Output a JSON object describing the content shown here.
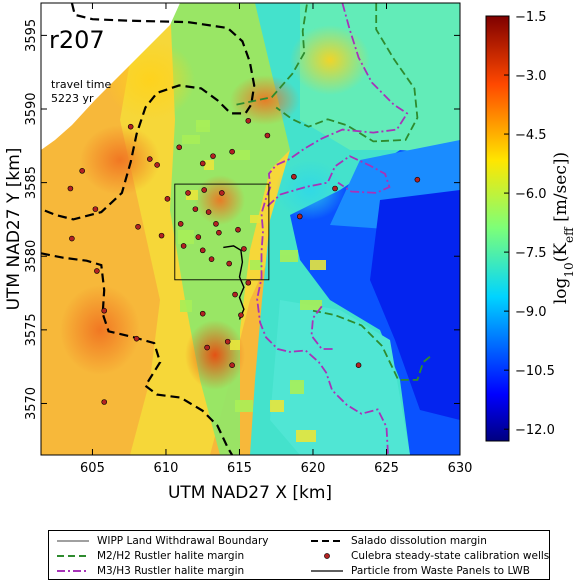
{
  "chart_data": {
    "type": "heatmap",
    "title": "",
    "xlabel": "UTM NAD27 X [km]",
    "ylabel": "UTM NAD27 Y [km]",
    "xlim": [
      601.5,
      630
    ],
    "ylim": [
      3566.5,
      3597.2
    ],
    "x_ticks": [
      "605",
      "610",
      "615",
      "620",
      "625",
      "630"
    ],
    "y_ticks": [
      "3570",
      "3575",
      "3580",
      "3585",
      "3590",
      "3595"
    ],
    "x_tick_values": [
      605,
      610,
      615,
      620,
      625,
      630
    ],
    "y_tick_values": [
      3570,
      3575,
      3580,
      3585,
      3590,
      3595
    ],
    "colorbar": {
      "label": "log10(Keff [m/sec])",
      "label_main": "log",
      "label_sub": "10",
      "label_rest": "(K",
      "label_k_sub": "eff",
      "label_units": " [m/sec])",
      "ticks": [
        "−1.5",
        "−3.0",
        "−4.5",
        "−6.0",
        "−7.5",
        "−9.0",
        "−10.5",
        "−12.0"
      ],
      "tick_values": [
        -1.5,
        -3.0,
        -4.5,
        -6.0,
        -7.5,
        -9.0,
        -10.5,
        -12.0
      ],
      "range": [
        -12.3,
        -1.5
      ]
    },
    "annotations": {
      "realization": "r207",
      "travel_label": "travel time",
      "travel_value": "5223 yr"
    },
    "land_withdrawal_boundary": {
      "x": [
        610.6,
        617.0
      ],
      "y": [
        3578.4,
        3584.9
      ]
    },
    "wells": [
      [
        607.6,
        3588.8
      ],
      [
        610.9,
        3587.4
      ],
      [
        609.4,
        3586.2
      ],
      [
        612.5,
        3586.3
      ],
      [
        613.2,
        3586.8
      ],
      [
        614.5,
        3587.1
      ],
      [
        615.6,
        3589.2
      ],
      [
        616.9,
        3588.2
      ],
      [
        608.9,
        3586.6
      ],
      [
        610.1,
        3583.9
      ],
      [
        611.5,
        3584.3
      ],
      [
        612.6,
        3584.5
      ],
      [
        613.8,
        3584.3
      ],
      [
        612.0,
        3583.2
      ],
      [
        612.9,
        3583.0
      ],
      [
        613.4,
        3582.2
      ],
      [
        611.0,
        3582.2
      ],
      [
        612.2,
        3581.3
      ],
      [
        613.6,
        3581.6
      ],
      [
        614.9,
        3581.8
      ],
      [
        611.2,
        3580.7
      ],
      [
        612.5,
        3580.4
      ],
      [
        613.1,
        3579.8
      ],
      [
        614.3,
        3579.5
      ],
      [
        615.3,
        3580.5
      ],
      [
        609.7,
        3581.4
      ],
      [
        608.1,
        3582.0
      ],
      [
        605.2,
        3583.2
      ],
      [
        604.3,
        3585.8
      ],
      [
        603.5,
        3584.6
      ],
      [
        603.6,
        3581.2
      ],
      [
        605.3,
        3579.0
      ],
      [
        605.8,
        3576.3
      ],
      [
        608.0,
        3574.4
      ],
      [
        612.5,
        3576.1
      ],
      [
        614.2,
        3574.2
      ],
      [
        614.7,
        3577.4
      ],
      [
        614.5,
        3572.6
      ],
      [
        615.1,
        3576.0
      ],
      [
        612.8,
        3573.8
      ],
      [
        615.6,
        3578.2
      ],
      [
        618.7,
        3585.4
      ],
      [
        619.1,
        3582.7
      ],
      [
        621.5,
        3584.6
      ],
      [
        623.1,
        3572.6
      ],
      [
        627.1,
        3585.2
      ],
      [
        605.8,
        3570.1
      ]
    ],
    "particle_path": [
      [
        613.9,
        3580.6
      ],
      [
        614.6,
        3580.7
      ],
      [
        615.1,
        3580.4
      ],
      [
        615.2,
        3579.6
      ],
      [
        615.0,
        3578.6
      ],
      [
        615.3,
        3577.9
      ],
      [
        615.0,
        3577.2
      ],
      [
        615.3,
        3576.4
      ],
      [
        615.0,
        3575.7
      ]
    ],
    "salado_margin": [
      [
        [
          603.6,
          3597.2
        ],
        [
          603.8,
          3596.4
        ],
        [
          605.0,
          3596.1
        ],
        [
          607.5,
          3596.0
        ],
        [
          611.5,
          3595.9
        ],
        [
          614.2,
          3595.5
        ],
        [
          615.2,
          3594.6
        ],
        [
          615.7,
          3593.2
        ],
        [
          616.0,
          3591.6
        ],
        [
          615.8,
          3590.3
        ],
        [
          615.4,
          3589.7
        ],
        [
          614.4,
          3589.7
        ],
        [
          613.5,
          3590.6
        ],
        [
          612.4,
          3591.4
        ],
        [
          610.9,
          3591.6
        ],
        [
          609.4,
          3591.1
        ],
        [
          608.6,
          3590.1
        ],
        [
          608.0,
          3588.3
        ],
        [
          607.6,
          3586.4
        ],
        [
          607.0,
          3584.3
        ],
        [
          605.6,
          3583.0
        ],
        [
          603.7,
          3582.5
        ],
        [
          602.5,
          3582.8
        ],
        [
          601.5,
          3583.2
        ]
      ],
      [
        [
          601.5,
          3580.2
        ],
        [
          603.0,
          3579.9
        ],
        [
          604.6,
          3579.7
        ],
        [
          605.6,
          3579.4
        ],
        [
          605.8,
          3577.7
        ],
        [
          605.7,
          3576.1
        ],
        [
          606.1,
          3574.9
        ],
        [
          607.8,
          3574.5
        ],
        [
          609.2,
          3574.1
        ],
        [
          609.6,
          3572.8
        ],
        [
          608.6,
          3571.2
        ],
        [
          609.4,
          3570.6
        ],
        [
          611.0,
          3570.4
        ],
        [
          612.5,
          3569.5
        ],
        [
          613.5,
          3568.5
        ],
        [
          614.2,
          3567.0
        ],
        [
          614.5,
          3566.5
        ]
      ]
    ],
    "m2_margin": [
      [
        [
          614.8,
          3590.3
        ],
        [
          617.2,
          3590.8
        ],
        [
          618.6,
          3592.4
        ],
        [
          619.4,
          3593.8
        ],
        [
          619.3,
          3595.3
        ],
        [
          619.6,
          3597.2
        ]
      ],
      [
        [
          624.3,
          3597.2
        ],
        [
          624.3,
          3595.4
        ],
        [
          625.5,
          3593.4
        ],
        [
          626.9,
          3591.4
        ],
        [
          627.1,
          3589.4
        ],
        [
          626.3,
          3587.9
        ],
        [
          624.1,
          3587.8
        ],
        [
          622.3,
          3588.9
        ],
        [
          621.0,
          3589.3
        ],
        [
          619.7,
          3588.8
        ],
        [
          618.6,
          3589.3
        ],
        [
          617.5,
          3590.1
        ]
      ],
      [
        [
          620.0,
          3576.3
        ],
        [
          621.5,
          3576.0
        ],
        [
          623.3,
          3575.3
        ],
        [
          624.7,
          3573.9
        ],
        [
          625.8,
          3571.6
        ],
        [
          627.1,
          3571.6
        ],
        [
          627.5,
          3572.8
        ],
        [
          628.1,
          3573.3
        ]
      ]
    ],
    "m3_margin": [
      [
        [
          622.0,
          3597.2
        ],
        [
          622.5,
          3595.4
        ],
        [
          623.1,
          3593.5
        ],
        [
          624.0,
          3591.8
        ],
        [
          625.5,
          3590.3
        ],
        [
          626.4,
          3589.7
        ],
        [
          625.7,
          3588.6
        ],
        [
          624.1,
          3588.4
        ],
        [
          622.0,
          3588.6
        ],
        [
          620.6,
          3588.0
        ],
        [
          619.4,
          3587.3
        ],
        [
          618.4,
          3586.6
        ],
        [
          617.5,
          3586.2
        ],
        [
          617.0,
          3585.6
        ],
        [
          617.1,
          3584.7
        ],
        [
          616.8,
          3583.9
        ],
        [
          616.5,
          3582.9
        ],
        [
          616.6,
          3581.7
        ],
        [
          616.5,
          3580.3
        ],
        [
          616.5,
          3578.5
        ],
        [
          616.2,
          3577.1
        ],
        [
          616.4,
          3575.5
        ],
        [
          616.8,
          3574.5
        ],
        [
          617.6,
          3573.7
        ],
        [
          618.4,
          3573.5
        ],
        [
          619.5,
          3573.6
        ],
        [
          620.4,
          3572.8
        ],
        [
          620.9,
          3572.1
        ],
        [
          621.3,
          3570.9
        ],
        [
          622.3,
          3569.9
        ],
        [
          623.3,
          3569.3
        ],
        [
          624.4,
          3569.6
        ],
        [
          625.0,
          3568.4
        ],
        [
          625.1,
          3566.5
        ]
      ],
      [
        [
          616.9,
          3583.4
        ],
        [
          617.8,
          3584.2
        ],
        [
          619.5,
          3584.7
        ],
        [
          621.0,
          3585.0
        ],
        [
          621.5,
          3586.1
        ],
        [
          622.5,
          3586.8
        ],
        [
          623.8,
          3586.2
        ],
        [
          624.9,
          3585.6
        ],
        [
          625.2,
          3584.7
        ],
        [
          624.3,
          3584.3
        ],
        [
          622.6,
          3584.4
        ],
        [
          621.7,
          3585.0
        ]
      ],
      [
        [
          620.6,
          3576.6
        ],
        [
          620.0,
          3575.8
        ],
        [
          619.9,
          3574.6
        ],
        [
          620.6,
          3573.7
        ],
        [
          621.4,
          3573.7
        ]
      ]
    ],
    "grid": false
  },
  "legend": {
    "items": [
      "WIPP Land Withdrawal Boundary",
      "Salado dissolution margin",
      "M2/H2 Rustler halite margin",
      "Culebra steady-state calibration wells",
      "M3/H3 Rustler halite margin",
      "Particle from Waste Panels to LWB"
    ],
    "colors": {
      "boundary": "#000000",
      "salado": "#000000",
      "m2": "#2e8b2e",
      "wells": "#b22222",
      "m3": "#a733b8",
      "particle": "#000000"
    }
  }
}
